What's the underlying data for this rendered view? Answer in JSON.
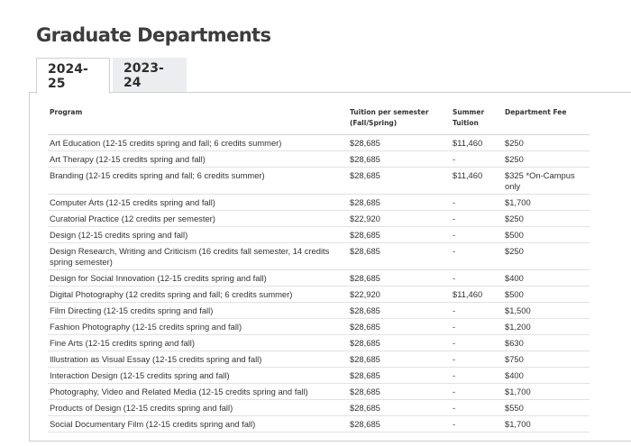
{
  "page": {
    "title": "Graduate Departments"
  },
  "tabs": [
    {
      "label": "2024-25",
      "active": true
    },
    {
      "label": "2023-24",
      "active": false
    }
  ],
  "table": {
    "headers": {
      "program": "Program",
      "tuition": "Tuition per semester (Fall/Spring)",
      "summer": "Summer Tuition",
      "fee": "Department Fee"
    },
    "rows": [
      {
        "program": "Art Education (12-15 credits spring and fall; 6 credits summer)",
        "tuition": "$28,685",
        "summer": "$11,460",
        "fee": "$250"
      },
      {
        "program": "Art Therapy (12-15 credits spring and fall)",
        "tuition": "$28,685",
        "summer": "-",
        "fee": "$250"
      },
      {
        "program": "Branding (12-15 credits spring and fall; 6 credits summer)",
        "tuition": "$28,685",
        "summer": "$11,460",
        "fee": "$325 *On-Campus only"
      },
      {
        "program": "Computer Arts (12-15 credits spring and fall)",
        "tuition": "$28,685",
        "summer": "-",
        "fee": "$1,700"
      },
      {
        "program": "Curatorial Practice (12 credits per semester)",
        "tuition": "$22,920",
        "summer": "-",
        "fee": "$250"
      },
      {
        "program": "Design (12-15 credits spring and fall)",
        "tuition": "$28,685",
        "summer": "-",
        "fee": "$500"
      },
      {
        "program": "Design Research, Writing and Criticism (16 credits fall semester, 14 credits spring semester)",
        "tuition": "$28,685",
        "summer": "-",
        "fee": "$250"
      },
      {
        "program": "Design for Social Innovation (12-15 credits spring and fall)",
        "tuition": "$28,685",
        "summer": "-",
        "fee": "$400"
      },
      {
        "program": "Digital Photography (12 credits spring and fall; 6 credits summer)",
        "tuition": "$22,920",
        "summer": "$11,460",
        "fee": "$500"
      },
      {
        "program": "Film Directing (12-15 credits spring and fall)",
        "tuition": "$28,685",
        "summer": "-",
        "fee": "$1,500"
      },
      {
        "program": "Fashion Photography (12-15 credits spring and fall)",
        "tuition": "$28,685",
        "summer": "-",
        "fee": "$1,200"
      },
      {
        "program": "Fine Arts (12-15 credits spring and fall)",
        "tuition": "$28,685",
        "summer": "-",
        "fee": "$630"
      },
      {
        "program": "Illustration as Visual Essay (12-15 credits spring and fall)",
        "tuition": "$28,685",
        "summer": "-",
        "fee": "$750"
      },
      {
        "program": "Interaction Design (12-15 credits spring and fall)",
        "tuition": "$28,685",
        "summer": "-",
        "fee": "$400"
      },
      {
        "program": "Photography, Video and Related Media (12-15 credits spring and fall)",
        "tuition": "$28,685",
        "summer": "-",
        "fee": "$1,700"
      },
      {
        "program": "Products of Design (12-15 credits spring and fall)",
        "tuition": "$28,685",
        "summer": "-",
        "fee": "$550"
      },
      {
        "program": "Social Documentary Film (12-15 credits spring and fall)",
        "tuition": "$28,685",
        "summer": "-",
        "fee": "$1,700"
      }
    ]
  }
}
